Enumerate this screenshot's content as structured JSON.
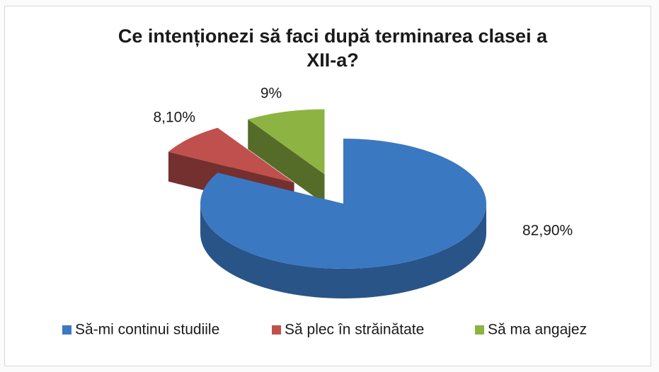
{
  "chart_data": {
    "type": "pie",
    "title": "Ce intenționezi să faci după terminarea clasei a XII-a?",
    "categories": [
      "Să-mi continui studiile",
      "Să plec în străinătate",
      "Să ma angajez"
    ],
    "values": [
      82.9,
      8.1,
      9
    ],
    "value_labels": [
      "82,90%",
      "8,10%",
      "9%"
    ],
    "colors": [
      "#3b78c2",
      "#c0504d",
      "#8db342"
    ],
    "legend": "bottom"
  }
}
